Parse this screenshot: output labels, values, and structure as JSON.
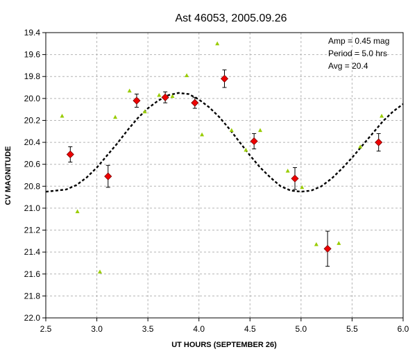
{
  "chart_data": {
    "type": "scatter",
    "title": "Ast 46053, 2005.09.26",
    "xlabel": "UT HOURS (SEPTEMBER 26)",
    "ylabel": "CV MAGNITUDE",
    "xlim": [
      2.5,
      6.0
    ],
    "ylim": [
      19.4,
      22.0
    ],
    "y_inverted": true,
    "grid": true,
    "xticks": [
      "2.5",
      "3.0",
      "3.5",
      "4.0",
      "4.5",
      "5.0",
      "5.5",
      "6.0"
    ],
    "yticks": [
      "19.4",
      "19.6",
      "19.8",
      "20.0",
      "20.2",
      "20.4",
      "20.6",
      "20.8",
      "21.0",
      "21.2",
      "21.4",
      "21.6",
      "21.8",
      "22.0"
    ],
    "annotations": [
      "Amp = 0.45 mag",
      "Period = 5.0 hrs",
      "Avg = 20.4"
    ],
    "fit": {
      "style": "dashed",
      "amplitude": 0.45,
      "period": 5.0,
      "average": 20.4,
      "x": [
        2.5,
        2.6,
        2.7,
        2.8,
        2.9,
        3.0,
        3.1,
        3.2,
        3.3,
        3.4,
        3.5,
        3.6,
        3.7,
        3.8,
        3.9,
        4.0,
        4.1,
        4.2,
        4.3,
        4.4,
        4.5,
        4.6,
        4.7,
        4.8,
        4.9,
        5.0,
        5.1,
        5.2,
        5.3,
        5.4,
        5.5,
        5.6,
        5.7,
        5.8,
        5.9,
        6.0
      ],
      "y": [
        20.85,
        20.84,
        20.83,
        20.79,
        20.72,
        20.63,
        20.52,
        20.41,
        20.29,
        20.18,
        20.09,
        20.02,
        19.97,
        19.95,
        19.96,
        20.01,
        20.08,
        20.17,
        20.28,
        20.4,
        20.52,
        20.63,
        20.72,
        20.8,
        20.84,
        20.85,
        20.84,
        20.8,
        20.73,
        20.64,
        20.54,
        20.43,
        20.32,
        20.21,
        20.12,
        20.05
      ]
    },
    "series": [
      {
        "style": "red-diamond-errorbar",
        "x": [
          2.74,
          3.11,
          3.39,
          3.67,
          3.96,
          4.25,
          4.54,
          4.94,
          5.26,
          5.76
        ],
        "y": [
          20.51,
          20.71,
          20.02,
          19.99,
          20.04,
          19.82,
          20.39,
          20.73,
          21.37,
          20.4
        ],
        "yerr": [
          0.07,
          0.1,
          0.06,
          0.05,
          0.05,
          0.08,
          0.07,
          0.1,
          0.16,
          0.08
        ]
      },
      {
        "style": "green-triangle",
        "x": [
          2.66,
          2.81,
          3.03,
          3.18,
          3.32,
          3.47,
          3.61,
          3.74,
          3.88,
          4.03,
          4.18,
          4.32,
          4.46,
          4.6,
          4.87,
          5.01,
          5.15,
          5.37,
          5.58,
          5.79
        ],
        "y": [
          20.16,
          21.03,
          21.58,
          20.17,
          19.93,
          20.12,
          19.97,
          19.98,
          19.79,
          20.33,
          19.5,
          20.29,
          20.47,
          20.29,
          20.66,
          20.81,
          21.33,
          21.32,
          20.44,
          20.16
        ]
      }
    ],
    "colors": {
      "diamond_fill": "#ee0000",
      "diamond_edge": "#7a0000",
      "triangle": "#99cc00",
      "fit_line": "#000000",
      "grid": "#b4b4b4"
    }
  }
}
